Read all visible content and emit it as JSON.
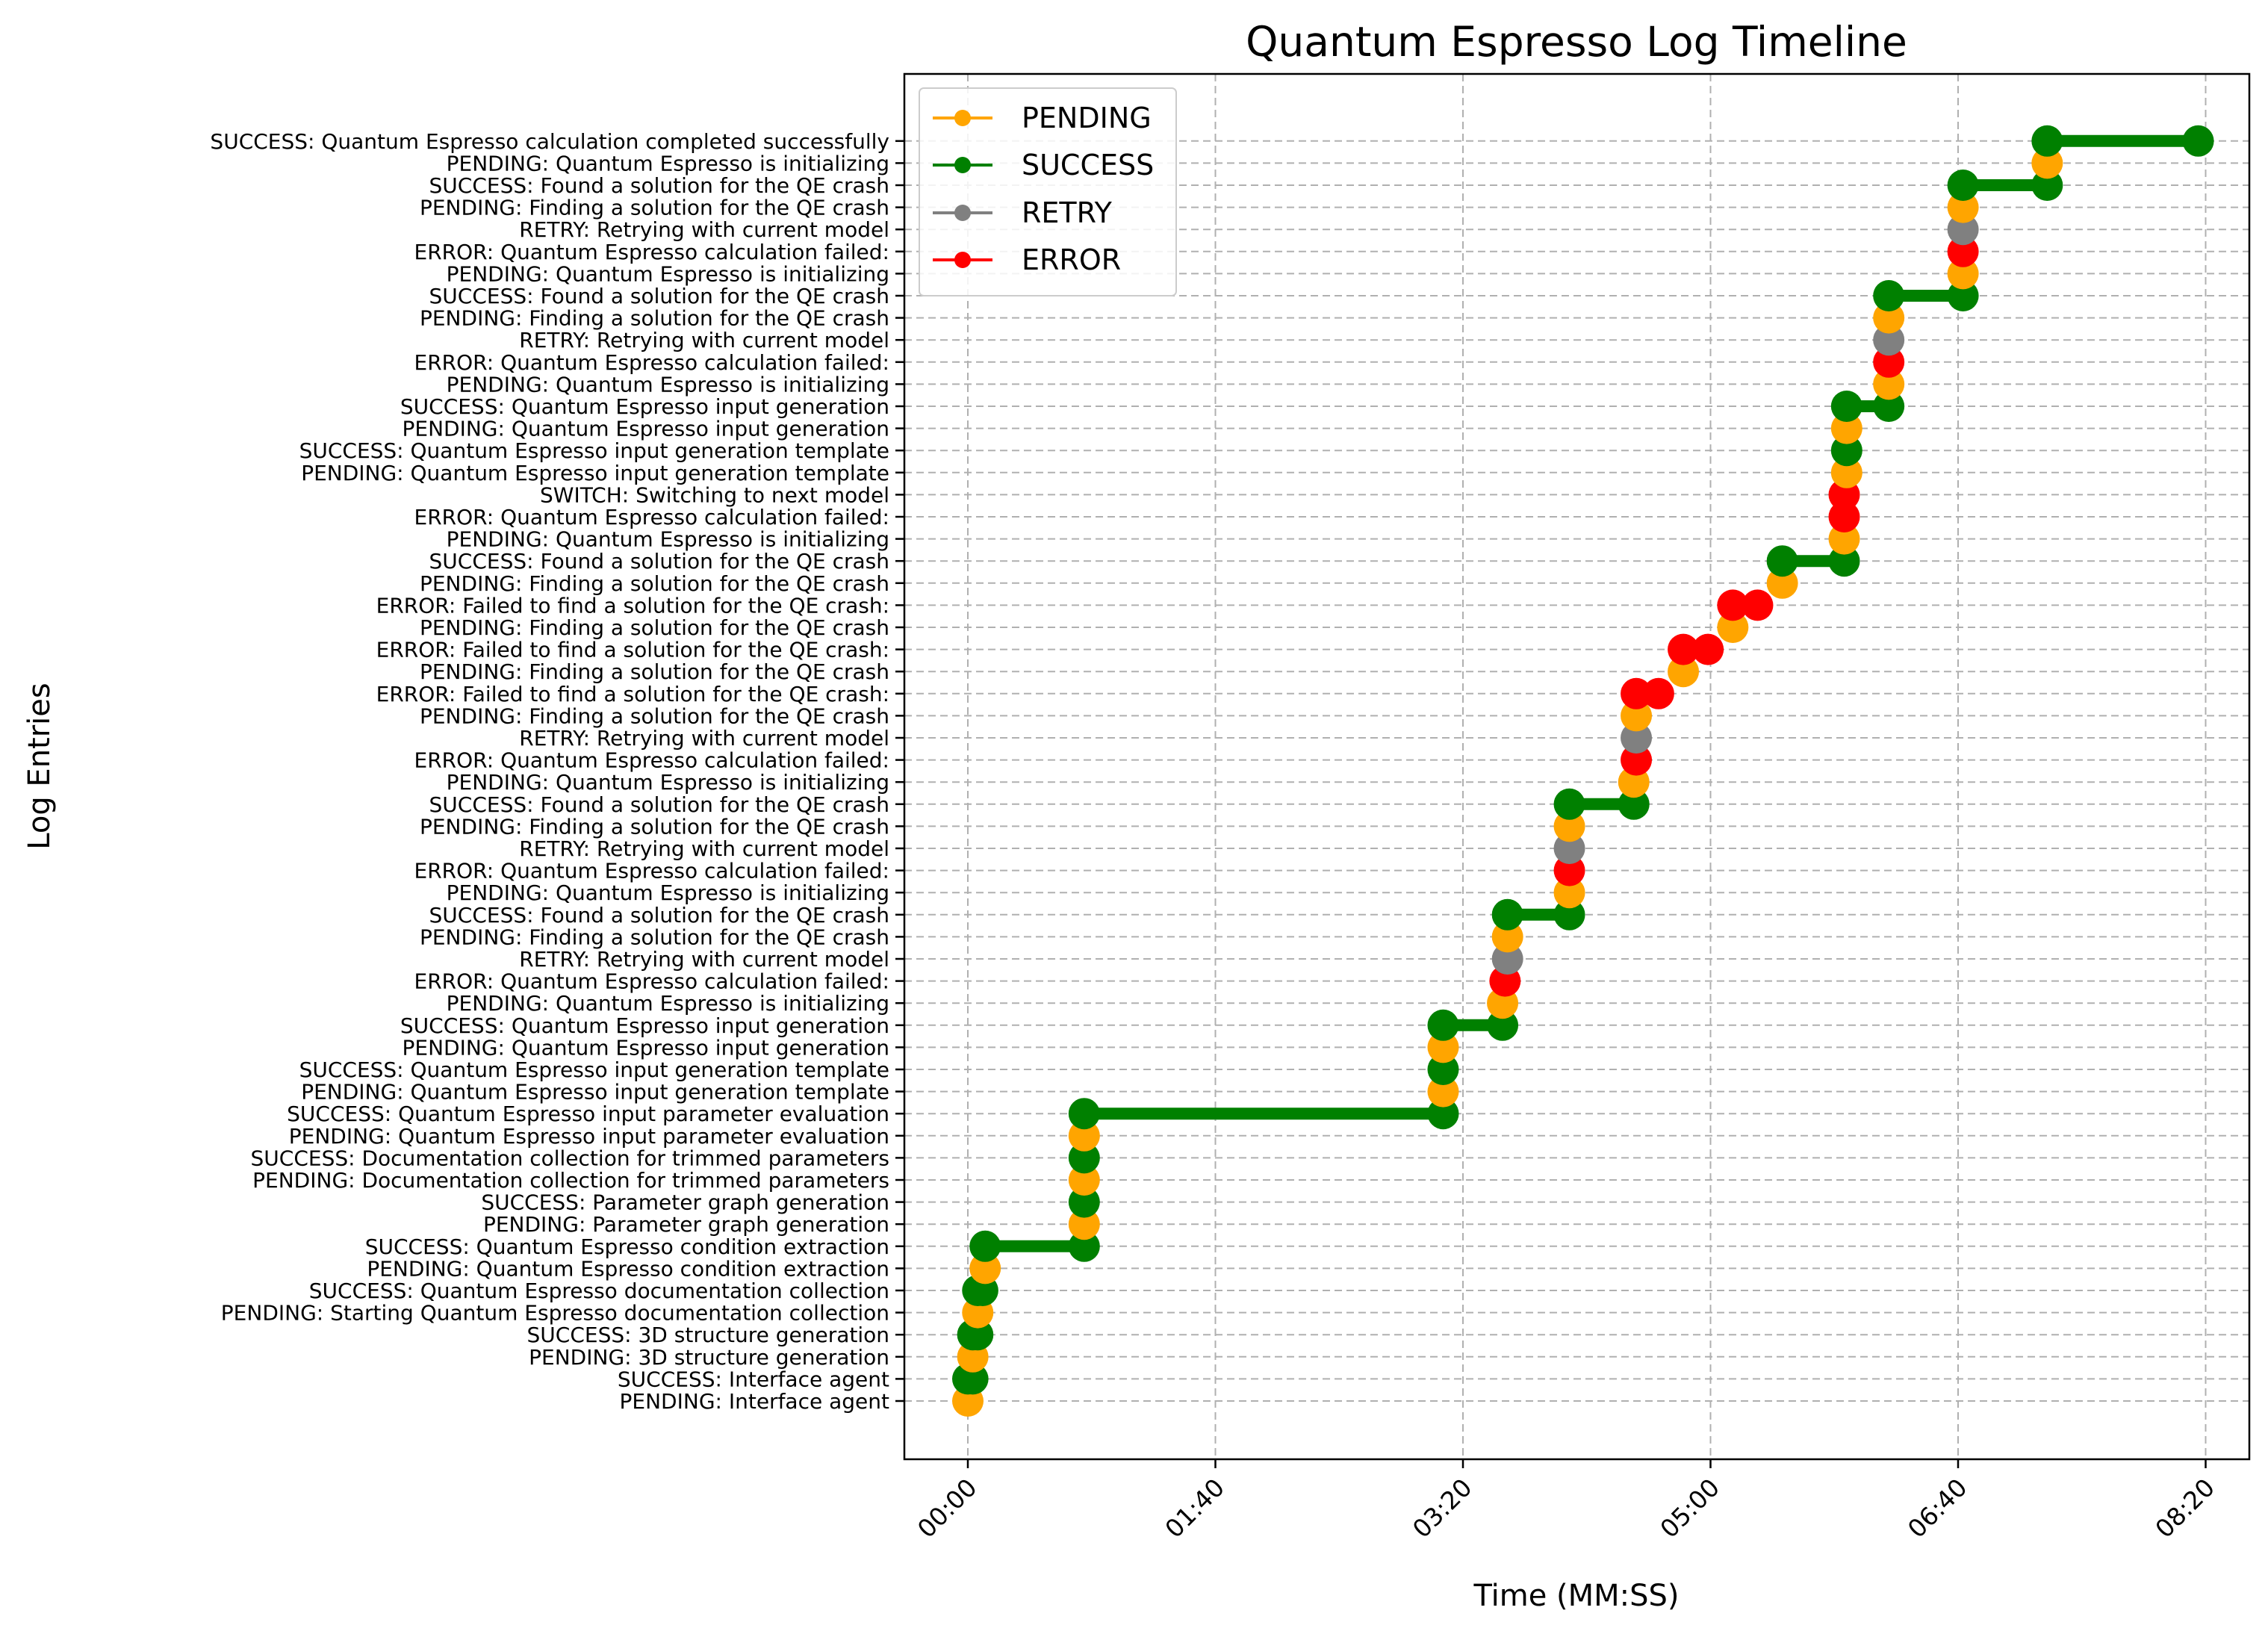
{
  "chart_data": {
    "type": "line",
    "title": "Quantum Espresso Log Timeline",
    "xlabel": "Time (MM:SS)",
    "ylabel": "Log Entries",
    "xlim": [
      -25,
      530
    ],
    "x_ticks": [
      0,
      100,
      200,
      300,
      400,
      500
    ],
    "x_tick_labels": [
      "00:00",
      "01:40",
      "03:20",
      "05:00",
      "06:40",
      "08:20"
    ],
    "grid": true,
    "legend_position": "top-left",
    "series": [
      {
        "name": "PENDING",
        "color": "#ffa500"
      },
      {
        "name": "SUCCESS",
        "color": "#008000"
      },
      {
        "name": "RETRY",
        "color": "#808080"
      },
      {
        "name": "ERROR",
        "color": "#ff0000"
      }
    ],
    "entries": [
      {
        "label": "PENDING: Interface agent",
        "status": "PENDING",
        "start": 0,
        "end": 0
      },
      {
        "label": "SUCCESS: Interface agent",
        "status": "SUCCESS",
        "start": 0,
        "end": 2
      },
      {
        "label": "PENDING: 3D structure generation",
        "status": "PENDING",
        "start": 2,
        "end": 2
      },
      {
        "label": "SUCCESS: 3D structure generation",
        "status": "SUCCESS",
        "start": 2,
        "end": 4
      },
      {
        "label": "PENDING: Starting Quantum Espresso documentation collection",
        "status": "PENDING",
        "start": 4,
        "end": 4
      },
      {
        "label": "SUCCESS: Quantum Espresso documentation collection",
        "status": "SUCCESS",
        "start": 4,
        "end": 6
      },
      {
        "label": "PENDING: Quantum Espresso condition extraction",
        "status": "PENDING",
        "start": 7,
        "end": 7
      },
      {
        "label": "SUCCESS: Quantum Espresso condition extraction",
        "status": "SUCCESS",
        "start": 7,
        "end": 47
      },
      {
        "label": "PENDING: Parameter graph generation",
        "status": "PENDING",
        "start": 47,
        "end": 47
      },
      {
        "label": "SUCCESS: Parameter graph generation",
        "status": "SUCCESS",
        "start": 47,
        "end": 47
      },
      {
        "label": "PENDING: Documentation collection for trimmed parameters",
        "status": "PENDING",
        "start": 47,
        "end": 47
      },
      {
        "label": "SUCCESS: Documentation collection for trimmed parameters",
        "status": "SUCCESS",
        "start": 47,
        "end": 47
      },
      {
        "label": "PENDING: Quantum Espresso input parameter evaluation",
        "status": "PENDING",
        "start": 47,
        "end": 47
      },
      {
        "label": "SUCCESS: Quantum Espresso input parameter evaluation",
        "status": "SUCCESS",
        "start": 47,
        "end": 192
      },
      {
        "label": "PENDING: Quantum Espresso input generation template",
        "status": "PENDING",
        "start": 192,
        "end": 192
      },
      {
        "label": "SUCCESS: Quantum Espresso input generation template",
        "status": "SUCCESS",
        "start": 192,
        "end": 192
      },
      {
        "label": "PENDING: Quantum Espresso input generation",
        "status": "PENDING",
        "start": 192,
        "end": 192
      },
      {
        "label": "SUCCESS: Quantum Espresso input generation",
        "status": "SUCCESS",
        "start": 192,
        "end": 216
      },
      {
        "label": "PENDING: Quantum Espresso is initializing",
        "status": "PENDING",
        "start": 216,
        "end": 216
      },
      {
        "label": "ERROR: Quantum Espresso calculation failed: ",
        "status": "ERROR",
        "start": 217,
        "end": 217
      },
      {
        "label": "RETRY: Retrying with current model",
        "status": "RETRY",
        "start": 218,
        "end": 218
      },
      {
        "label": "PENDING: Finding a solution for the QE crash",
        "status": "PENDING",
        "start": 218,
        "end": 218
      },
      {
        "label": "SUCCESS: Found a solution for the QE crash",
        "status": "SUCCESS",
        "start": 218,
        "end": 243
      },
      {
        "label": "PENDING: Quantum Espresso is initializing",
        "status": "PENDING",
        "start": 243,
        "end": 243
      },
      {
        "label": "ERROR: Quantum Espresso calculation failed: ",
        "status": "ERROR",
        "start": 243,
        "end": 243
      },
      {
        "label": "RETRY: Retrying with current model",
        "status": "RETRY",
        "start": 243,
        "end": 243
      },
      {
        "label": "PENDING: Finding a solution for the QE crash",
        "status": "PENDING",
        "start": 243,
        "end": 243
      },
      {
        "label": "SUCCESS: Found a solution for the QE crash",
        "status": "SUCCESS",
        "start": 243,
        "end": 269
      },
      {
        "label": "PENDING: Quantum Espresso is initializing",
        "status": "PENDING",
        "start": 269,
        "end": 269
      },
      {
        "label": "ERROR: Quantum Espresso calculation failed: ",
        "status": "ERROR",
        "start": 270,
        "end": 270
      },
      {
        "label": "RETRY: Retrying with current model",
        "status": "RETRY",
        "start": 270,
        "end": 270
      },
      {
        "label": "PENDING: Finding a solution for the QE crash",
        "status": "PENDING",
        "start": 270,
        "end": 270
      },
      {
        "label": "ERROR: Failed to find a solution for the QE crash: ",
        "status": "ERROR",
        "start": 270,
        "end": 279
      },
      {
        "label": "PENDING: Finding a solution for the QE crash",
        "status": "PENDING",
        "start": 289,
        "end": 289
      },
      {
        "label": "ERROR: Failed to find a solution for the QE crash: ",
        "status": "ERROR",
        "start": 289,
        "end": 299
      },
      {
        "label": "PENDING: Finding a solution for the QE crash",
        "status": "PENDING",
        "start": 309,
        "end": 309
      },
      {
        "label": "ERROR: Failed to find a solution for the QE crash: ",
        "status": "ERROR",
        "start": 309,
        "end": 319
      },
      {
        "label": "PENDING: Finding a solution for the QE crash",
        "status": "PENDING",
        "start": 329,
        "end": 329
      },
      {
        "label": "SUCCESS: Found a solution for the QE crash",
        "status": "SUCCESS",
        "start": 329,
        "end": 354
      },
      {
        "label": "PENDING: Quantum Espresso is initializing",
        "status": "PENDING",
        "start": 354,
        "end": 354
      },
      {
        "label": "ERROR: Quantum Espresso calculation failed: ",
        "status": "ERROR",
        "start": 354,
        "end": 354
      },
      {
        "label": "SWITCH: Switching to next model",
        "status": "ERROR",
        "start": 354,
        "end": 354
      },
      {
        "label": "PENDING: Quantum Espresso input generation template",
        "status": "PENDING",
        "start": 355,
        "end": 355
      },
      {
        "label": "SUCCESS: Quantum Espresso input generation template",
        "status": "SUCCESS",
        "start": 355,
        "end": 355
      },
      {
        "label": "PENDING: Quantum Espresso input generation",
        "status": "PENDING",
        "start": 355,
        "end": 355
      },
      {
        "label": "SUCCESS: Quantum Espresso input generation",
        "status": "SUCCESS",
        "start": 355,
        "end": 372
      },
      {
        "label": "PENDING: Quantum Espresso is initializing",
        "status": "PENDING",
        "start": 372,
        "end": 372
      },
      {
        "label": "ERROR: Quantum Espresso calculation failed: ",
        "status": "ERROR",
        "start": 372,
        "end": 372
      },
      {
        "label": "RETRY: Retrying with current model",
        "status": "RETRY",
        "start": 372,
        "end": 372
      },
      {
        "label": "PENDING: Finding a solution for the QE crash",
        "status": "PENDING",
        "start": 372,
        "end": 372
      },
      {
        "label": "SUCCESS: Found a solution for the QE crash",
        "status": "SUCCESS",
        "start": 372,
        "end": 402
      },
      {
        "label": "PENDING: Quantum Espresso is initializing",
        "status": "PENDING",
        "start": 402,
        "end": 402
      },
      {
        "label": "ERROR: Quantum Espresso calculation failed: ",
        "status": "ERROR",
        "start": 402,
        "end": 402
      },
      {
        "label": "RETRY: Retrying with current model",
        "status": "RETRY",
        "start": 402,
        "end": 402
      },
      {
        "label": "PENDING: Finding a solution for the QE crash",
        "status": "PENDING",
        "start": 402,
        "end": 402
      },
      {
        "label": "SUCCESS: Found a solution for the QE crash",
        "status": "SUCCESS",
        "start": 402,
        "end": 436
      },
      {
        "label": "PENDING: Quantum Espresso is initializing",
        "status": "PENDING",
        "start": 436,
        "end": 436
      },
      {
        "label": "SUCCESS: Quantum Espresso calculation completed successfully",
        "status": "SUCCESS",
        "start": 436,
        "end": 497
      }
    ]
  }
}
